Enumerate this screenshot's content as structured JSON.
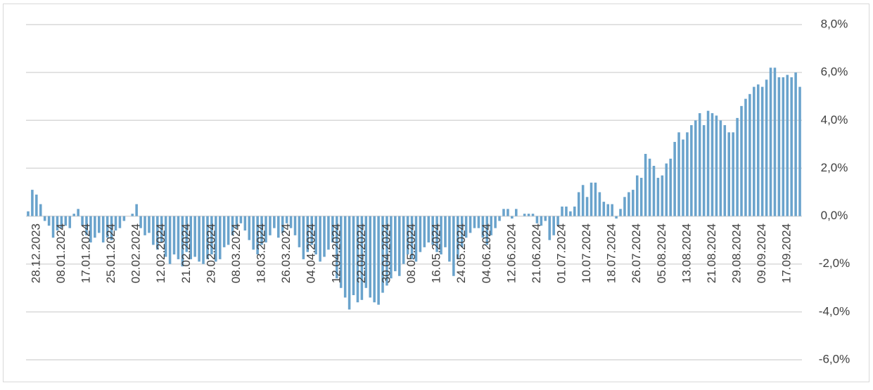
{
  "chart_data": {
    "type": "bar",
    "categories": [
      null,
      null,
      "28.12.2023",
      null,
      null,
      null,
      null,
      null,
      "08.01.2024",
      null,
      null,
      null,
      null,
      null,
      "17.01.2024",
      null,
      null,
      null,
      null,
      null,
      "25.01.2024",
      null,
      null,
      null,
      null,
      null,
      "02.02.2024",
      null,
      null,
      null,
      null,
      null,
      "12.02.2024",
      null,
      null,
      null,
      null,
      null,
      "21.02.2024",
      null,
      null,
      null,
      null,
      null,
      "29.02.2024",
      null,
      null,
      null,
      null,
      null,
      "08.03.2024",
      null,
      null,
      null,
      null,
      null,
      "18.03.2024",
      null,
      null,
      null,
      null,
      null,
      "26.03.2024",
      null,
      null,
      null,
      null,
      null,
      "04.04.2024",
      null,
      null,
      null,
      null,
      null,
      "12.04.2024",
      null,
      null,
      null,
      null,
      null,
      "22.04.2024",
      null,
      null,
      null,
      null,
      null,
      "30.04.2024",
      null,
      null,
      null,
      null,
      null,
      "08.05.2024",
      null,
      null,
      null,
      null,
      null,
      "16.05.2024",
      null,
      null,
      null,
      null,
      null,
      "24.05.2024",
      null,
      null,
      null,
      null,
      null,
      "04.06.2024",
      null,
      null,
      null,
      null,
      null,
      "12.06.2024",
      null,
      null,
      null,
      null,
      null,
      "21.06.2024",
      null,
      null,
      null,
      null,
      null,
      "01.07.2024",
      null,
      null,
      null,
      null,
      null,
      "10.07.2024",
      null,
      null,
      null,
      null,
      null,
      "18.07.2024",
      null,
      null,
      null,
      null,
      null,
      "26.07.2024",
      null,
      null,
      null,
      null,
      null,
      "05.08.2024",
      null,
      null,
      null,
      null,
      null,
      "13.08.2024",
      null,
      null,
      null,
      null,
      null,
      "21.08.2024",
      null,
      null,
      null,
      null,
      null,
      "29.08.2024",
      null,
      null,
      null,
      null,
      null,
      "09.09.2024",
      null,
      null,
      null,
      null,
      null,
      "17.09.2024",
      null,
      null,
      null
    ],
    "values": [
      0.2,
      1.1,
      0.9,
      0.5,
      -0.2,
      -0.4,
      -0.9,
      -0.6,
      -0.5,
      -0.4,
      -0.5,
      0.1,
      0.3,
      -0.4,
      -0.8,
      -1.1,
      -0.9,
      -0.7,
      -1.1,
      -0.9,
      -1.0,
      -0.6,
      -0.5,
      -0.2,
      0.0,
      0.1,
      0.5,
      -0.5,
      -0.8,
      -0.7,
      -1.2,
      -1.4,
      -1.1,
      -1.7,
      -2.0,
      -1.6,
      -1.8,
      -2.1,
      -1.5,
      -1.8,
      -1.7,
      -1.9,
      -2.0,
      -1.8,
      -1.6,
      -1.9,
      -1.8,
      -1.3,
      -1.2,
      -0.8,
      -0.5,
      -0.3,
      -0.6,
      -1.0,
      -1.4,
      -1.6,
      -1.2,
      -1.1,
      -0.8,
      -0.5,
      -0.9,
      -0.7,
      -0.3,
      -0.5,
      -0.8,
      -1.3,
      -1.8,
      -1.5,
      -1.2,
      -1.6,
      -1.9,
      -1.7,
      -1.4,
      -1.1,
      -2.6,
      -3.0,
      -3.4,
      -3.9,
      -3.3,
      -3.6,
      -3.5,
      -3.0,
      -3.4,
      -3.6,
      -3.7,
      -3.2,
      -2.9,
      -2.6,
      -2.3,
      -2.5,
      -2.0,
      -1.6,
      -1.8,
      -1.9,
      -1.5,
      -1.3,
      -1.1,
      -1.2,
      -1.5,
      -1.6,
      -1.3,
      -1.9,
      -2.5,
      -1.8,
      -1.3,
      -0.9,
      -0.7,
      -0.5,
      -0.5,
      -0.9,
      -1.2,
      -0.8,
      -0.5,
      -0.2,
      0.3,
      0.3,
      -0.1,
      0.3,
      0.0,
      0.1,
      0.1,
      0.1,
      -0.3,
      -0.4,
      -0.2,
      -1.0,
      -0.8,
      -0.4,
      0.4,
      0.4,
      0.2,
      0.4,
      1.0,
      1.3,
      0.8,
      1.4,
      1.4,
      1.0,
      0.6,
      0.5,
      0.5,
      -0.1,
      0.3,
      0.8,
      1.0,
      1.1,
      1.7,
      1.6,
      2.6,
      2.4,
      2.1,
      1.6,
      1.7,
      2.2,
      2.4,
      3.1,
      3.5,
      3.2,
      3.5,
      3.8,
      4.0,
      4.3,
      3.8,
      4.4,
      4.3,
      4.2,
      4.0,
      3.8,
      3.5,
      3.5,
      4.1,
      4.6,
      4.9,
      5.1,
      5.4,
      5.5,
      5.4,
      5.7,
      6.2,
      6.2,
      5.8,
      5.8,
      5.9,
      5.8,
      6.0,
      5.4
    ],
    "color": "#6aa3cc",
    "ylim": [
      -6,
      8
    ],
    "yticks": [
      {
        "value": -6,
        "label": "-6,0%"
      },
      {
        "value": -4,
        "label": "-4,0%"
      },
      {
        "value": -2,
        "label": "-2,0%"
      },
      {
        "value": 0,
        "label": "0,0%"
      },
      {
        "value": 2,
        "label": "2,0%"
      },
      {
        "value": 4,
        "label": "4,0%"
      },
      {
        "value": 6,
        "label": "6,0%"
      },
      {
        "value": 8,
        "label": "8,0%"
      }
    ],
    "grid": true
  }
}
